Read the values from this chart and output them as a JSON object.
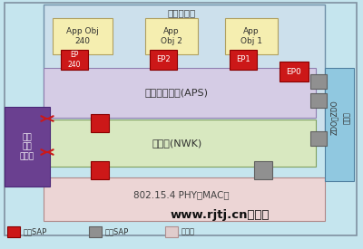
{
  "bg_color": "#c5e5ee",
  "title_text": "应用层架构",
  "aps_text": "应用支持子层(APS)",
  "nwk_text": "网络层(NWK)",
  "mac_text": "802.15.4 PHY和MAC层",
  "security_text": "安全\n服务\n提供层",
  "zdo_text": "ZDO和ZDO",
  "mgmt_text": "管理层",
  "appobj240_text": "App Obj\n240",
  "appobj2_text": "App\nObj 2",
  "appobj1_text": "App\nObj 1",
  "ep240_text": "EP\n240",
  "ep2_text": "EP2",
  "ep1_text": "EP1",
  "ep0_text": "EP0",
  "legend_data_text": "数据SAP",
  "legend_mgmt_text": "管理SAP",
  "legend_app_text": "应用层",
  "watermark": "www.rjtj.cn软荐网",
  "colors": {
    "light_blue_bg": "#c5e5ee",
    "app_frame_bg": "#cce0ec",
    "app_obj_yellow": "#f5eeb0",
    "aps_purple": "#d5cce5",
    "nwk_green": "#d8e8c0",
    "mac_pink": "#ecd5d5",
    "security_purple": "#6a4090",
    "zdo_blue": "#90c8e0",
    "red_sap": "#cc1818",
    "gray_sap": "#909090",
    "light_pink_sap": "#e0cccc",
    "connector_gray": "#909090",
    "white": "#ffffff",
    "dark_text": "#303030",
    "light_text": "#ffffff",
    "border_blue": "#7090a8",
    "border_gray": "#808080"
  }
}
